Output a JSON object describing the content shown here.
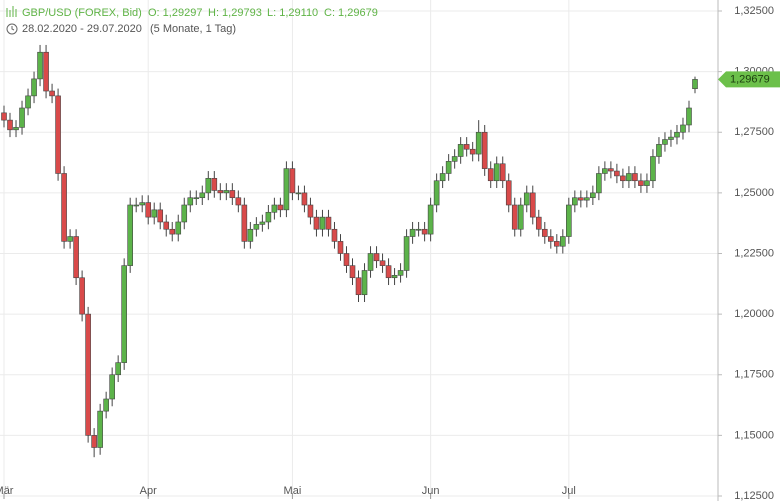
{
  "chart_data": {
    "type": "candlestick",
    "title": "GBP/USD (FOREX, Bid)",
    "quote_labels": [
      "O: 1,29297",
      "H: 1,29793",
      "L: 1,29110",
      "C: 1,29679"
    ],
    "subtitle": "28.02.2020 - 29.07.2020",
    "subtitle_note": "(5 Monate, 1 Tag)",
    "last_label": "1,29679",
    "up_color": "#5cb34a",
    "down_color": "#d94a4a",
    "last_label_color": "#6cc04a",
    "grid": true,
    "ylim": [
      1.125,
      1.325
    ],
    "yticks": [
      {
        "value": 1.125,
        "label": "1,12500"
      },
      {
        "value": 1.15,
        "label": "1,15000"
      },
      {
        "value": 1.175,
        "label": "1,17500"
      },
      {
        "value": 1.2,
        "label": "1,20000"
      },
      {
        "value": 1.225,
        "label": "1,22500"
      },
      {
        "value": 1.25,
        "label": "1,25000"
      },
      {
        "value": 1.275,
        "label": "1,27500"
      },
      {
        "value": 1.3,
        "label": "1,30000"
      },
      {
        "value": 1.325,
        "label": "1,32500"
      }
    ],
    "categories": [
      "Mär",
      null,
      null,
      null,
      null,
      null,
      null,
      null,
      null,
      null,
      null,
      null,
      null,
      null,
      null,
      null,
      null,
      null,
      null,
      null,
      null,
      null,
      null,
      null,
      "Apr",
      null,
      null,
      null,
      null,
      null,
      null,
      null,
      null,
      null,
      null,
      null,
      null,
      null,
      null,
      null,
      null,
      null,
      null,
      null,
      null,
      null,
      null,
      null,
      "Mai",
      null,
      null,
      null,
      null,
      null,
      null,
      null,
      null,
      null,
      null,
      null,
      null,
      null,
      null,
      null,
      null,
      null,
      null,
      null,
      null,
      null,
      null,
      "Jun",
      null,
      null,
      null,
      null,
      null,
      null,
      null,
      null,
      null,
      null,
      null,
      null,
      null,
      null,
      null,
      null,
      null,
      null,
      null,
      null,
      null,
      null,
      "Jul",
      null,
      null,
      null,
      null,
      null,
      null,
      null,
      null,
      null,
      null,
      null,
      null,
      null,
      null,
      null,
      null,
      null,
      null,
      null,
      null,
      null
    ],
    "open": [
      1.283,
      1.28,
      1.276,
      1.277,
      1.285,
      1.29,
      1.297,
      1.308,
      1.292,
      1.29,
      1.258,
      1.23,
      1.232,
      1.215,
      1.2,
      1.15,
      1.145,
      1.16,
      1.165,
      1.175,
      1.18,
      1.22,
      1.245,
      1.245,
      1.246,
      1.24,
      1.243,
      1.238,
      1.235,
      1.233,
      1.238,
      1.245,
      1.248,
      1.248,
      1.25,
      1.256,
      1.251,
      1.25,
      1.251,
      1.248,
      1.245,
      1.23,
      1.235,
      1.237,
      1.238,
      1.242,
      1.245,
      1.243,
      1.26,
      1.25,
      1.25,
      1.245,
      1.24,
      1.235,
      1.24,
      1.235,
      1.23,
      1.225,
      1.22,
      1.215,
      1.208,
      1.218,
      1.225,
      1.222,
      1.22,
      1.215,
      1.216,
      1.218,
      1.232,
      1.235,
      1.235,
      1.233,
      1.245,
      1.255,
      1.258,
      1.263,
      1.265,
      1.27,
      1.268,
      1.266,
      1.275,
      1.26,
      1.255,
      1.262,
      1.255,
      1.245,
      1.235,
      1.245,
      1.25,
      1.24,
      1.235,
      1.232,
      1.23,
      1.228,
      1.232,
      1.245,
      1.248,
      1.247,
      1.248,
      1.25,
      1.258,
      1.26,
      1.259,
      1.257,
      1.255,
      1.258,
      1.255,
      1.253,
      1.255,
      1.265,
      1.27,
      1.272,
      1.273,
      1.275,
      1.278,
      1.29297
    ],
    "high": [
      1.286,
      1.283,
      1.28,
      1.288,
      1.293,
      1.3,
      1.311,
      1.311,
      1.295,
      1.293,
      1.261,
      1.235,
      1.235,
      1.218,
      1.203,
      1.153,
      1.163,
      1.168,
      1.178,
      1.183,
      1.223,
      1.248,
      1.248,
      1.249,
      1.249,
      1.246,
      1.246,
      1.241,
      1.238,
      1.241,
      1.248,
      1.251,
      1.251,
      1.253,
      1.259,
      1.259,
      1.254,
      1.254,
      1.254,
      1.251,
      1.248,
      1.238,
      1.24,
      1.241,
      1.245,
      1.248,
      1.248,
      1.263,
      1.263,
      1.253,
      1.253,
      1.248,
      1.243,
      1.243,
      1.243,
      1.238,
      1.233,
      1.228,
      1.223,
      1.218,
      1.221,
      1.228,
      1.228,
      1.225,
      1.223,
      1.219,
      1.221,
      1.235,
      1.238,
      1.238,
      1.238,
      1.248,
      1.258,
      1.261,
      1.266,
      1.268,
      1.273,
      1.273,
      1.271,
      1.28,
      1.278,
      1.263,
      1.265,
      1.265,
      1.258,
      1.248,
      1.248,
      1.253,
      1.253,
      1.243,
      1.238,
      1.235,
      1.233,
      1.235,
      1.248,
      1.251,
      1.251,
      1.251,
      1.253,
      1.261,
      1.263,
      1.263,
      1.262,
      1.26,
      1.261,
      1.261,
      1.258,
      1.258,
      1.268,
      1.273,
      1.275,
      1.276,
      1.278,
      1.281,
      1.288,
      1.29793
    ],
    "low": [
      1.277,
      1.273,
      1.273,
      1.274,
      1.282,
      1.287,
      1.294,
      1.289,
      1.287,
      1.255,
      1.227,
      1.227,
      1.212,
      1.197,
      1.147,
      1.141,
      1.142,
      1.157,
      1.162,
      1.172,
      1.177,
      1.217,
      1.242,
      1.242,
      1.237,
      1.237,
      1.235,
      1.232,
      1.23,
      1.23,
      1.235,
      1.242,
      1.245,
      1.245,
      1.247,
      1.248,
      1.247,
      1.247,
      1.245,
      1.242,
      1.227,
      1.227,
      1.232,
      1.234,
      1.235,
      1.239,
      1.24,
      1.24,
      1.247,
      1.247,
      1.242,
      1.237,
      1.232,
      1.232,
      1.232,
      1.227,
      1.222,
      1.217,
      1.212,
      1.205,
      1.205,
      1.215,
      1.219,
      1.217,
      1.212,
      1.212,
      1.213,
      1.215,
      1.229,
      1.232,
      1.23,
      1.23,
      1.242,
      1.252,
      1.255,
      1.26,
      1.262,
      1.265,
      1.263,
      1.263,
      1.257,
      1.252,
      1.252,
      1.252,
      1.242,
      1.232,
      1.232,
      1.242,
      1.237,
      1.232,
      1.229,
      1.227,
      1.225,
      1.225,
      1.229,
      1.242,
      1.244,
      1.244,
      1.245,
      1.247,
      1.255,
      1.256,
      1.254,
      1.252,
      1.252,
      1.252,
      1.25,
      1.25,
      1.252,
      1.262,
      1.267,
      1.269,
      1.27,
      1.272,
      1.275,
      1.2911
    ],
    "close": [
      1.28,
      1.276,
      1.277,
      1.285,
      1.29,
      1.297,
      1.308,
      1.292,
      1.29,
      1.258,
      1.23,
      1.232,
      1.215,
      1.2,
      1.15,
      1.145,
      1.16,
      1.165,
      1.175,
      1.18,
      1.22,
      1.245,
      1.245,
      1.246,
      1.24,
      1.243,
      1.238,
      1.235,
      1.233,
      1.238,
      1.245,
      1.248,
      1.248,
      1.25,
      1.256,
      1.251,
      1.25,
      1.251,
      1.248,
      1.245,
      1.23,
      1.235,
      1.237,
      1.238,
      1.242,
      1.245,
      1.243,
      1.26,
      1.25,
      1.25,
      1.245,
      1.24,
      1.235,
      1.24,
      1.235,
      1.23,
      1.225,
      1.22,
      1.215,
      1.208,
      1.218,
      1.225,
      1.222,
      1.22,
      1.215,
      1.216,
      1.218,
      1.232,
      1.235,
      1.235,
      1.233,
      1.245,
      1.255,
      1.258,
      1.263,
      1.265,
      1.27,
      1.268,
      1.266,
      1.275,
      1.26,
      1.255,
      1.262,
      1.255,
      1.245,
      1.235,
      1.245,
      1.25,
      1.24,
      1.235,
      1.232,
      1.23,
      1.228,
      1.232,
      1.245,
      1.248,
      1.247,
      1.248,
      1.25,
      1.258,
      1.26,
      1.259,
      1.257,
      1.255,
      1.258,
      1.255,
      1.253,
      1.255,
      1.265,
      1.27,
      1.272,
      1.273,
      1.275,
      1.278,
      1.285,
      1.29679
    ]
  }
}
